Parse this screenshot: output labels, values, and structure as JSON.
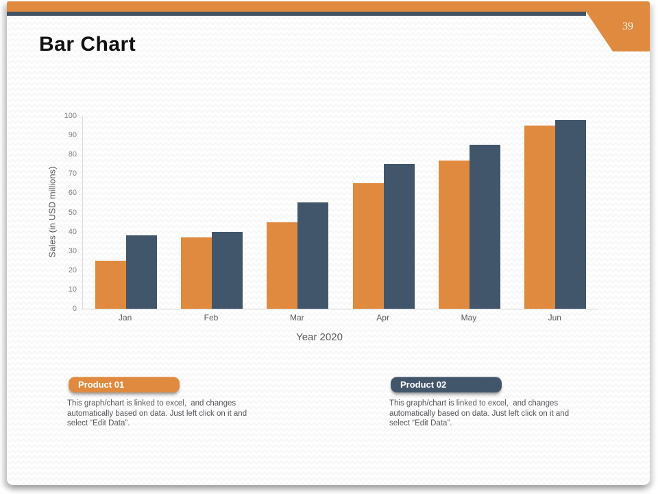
{
  "page": {
    "number": "39"
  },
  "header": {
    "title": "Bar Chart"
  },
  "chart_data": {
    "type": "bar",
    "title": "",
    "categories": [
      "Jan",
      "Feb",
      "Mar",
      "Apr",
      "May",
      "Jun"
    ],
    "series": [
      {
        "name": "Product 01",
        "color": "#E08A3F",
        "values": [
          25,
          37,
          45,
          65,
          77,
          95
        ]
      },
      {
        "name": "Product 02",
        "color": "#42566B",
        "values": [
          38,
          40,
          55,
          75,
          85,
          98
        ]
      }
    ],
    "xlabel": "Year 2020",
    "ylabel": "Sales (in USD millions)",
    "ylim": [
      0,
      100
    ],
    "ytick_step": 10,
    "grid": false,
    "legend_position": "none"
  },
  "legend_cards": [
    {
      "label": "Product 01",
      "color": "#E08A3F",
      "description_lines": [
        "This graph/chart is linked to excel,  and changes",
        "automatically based on data. Just left click on it and",
        "select “Edit Data”."
      ]
    },
    {
      "label": "Product 02",
      "color": "#42566B",
      "description_lines": [
        "This graph/chart is linked to excel,  and changes",
        "automatically based on data. Just left click on it and",
        "select “Edit Data”."
      ]
    }
  ],
  "colors": {
    "accent_orange": "#E08A3F",
    "accent_navy": "#42566B",
    "header_rule_navy": "#415263",
    "axis_line": "#D9D9D9",
    "tick_text": "#7F7F7F",
    "label_text": "#595959",
    "body_text": "#55565A",
    "title_text": "#101010",
    "page_number_text": "#FAF5EC"
  }
}
